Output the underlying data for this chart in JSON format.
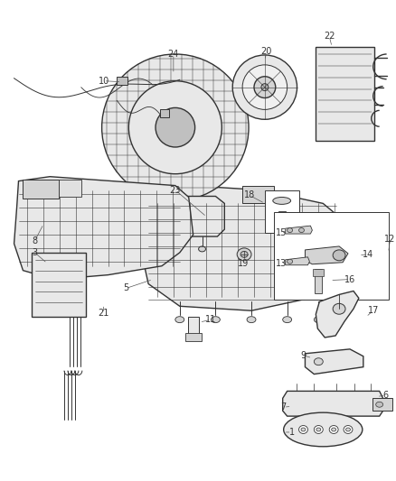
{
  "background_color": "#ffffff",
  "fig_width": 4.38,
  "fig_height": 5.33,
  "dpi": 100,
  "line_color": "#333333",
  "label_color": "#333333",
  "label_fontsize": 7.0,
  "gray_fill": "#d4d4d4",
  "light_fill": "#e8e8e8",
  "mid_fill": "#c0c0c0"
}
